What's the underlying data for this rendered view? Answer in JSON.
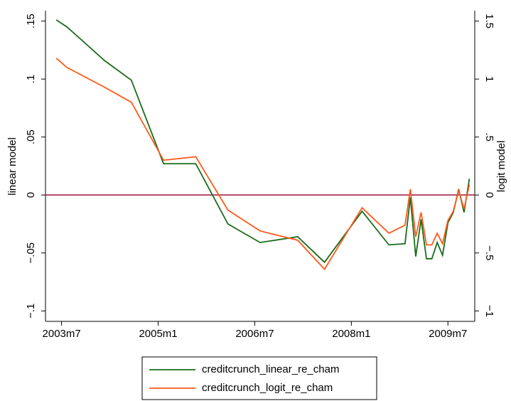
{
  "chart_data": {
    "type": "line",
    "y_label": "linear model",
    "y2_label": "logit model",
    "x": [
      "2003m6",
      "2003m8",
      "2004m3",
      "2004m8",
      "2005m2",
      "2005m8",
      "2006m2",
      "2006m8",
      "2007m3",
      "2007m8",
      "2008m3",
      "2008m8",
      "2008m11",
      "2008m12",
      "2009m1",
      "2009m2",
      "2009m3",
      "2009m4",
      "2009m5",
      "2009m6",
      "2009m7",
      "2009m8",
      "2009m9",
      "2009m10",
      "2009m11"
    ],
    "series": [
      {
        "name": "creditcrunch_linear_re_cham",
        "color": "#1a6b1a",
        "values": [
          0.151,
          0.145,
          0.116,
          0.099,
          0.027,
          0.027,
          -0.025,
          -0.041,
          -0.036,
          -0.058,
          -0.014,
          -0.043,
          -0.042,
          -0.002,
          -0.053,
          -0.021,
          -0.055,
          -0.055,
          -0.041,
          -0.052,
          -0.024,
          -0.015,
          0.005,
          -0.015,
          0.014
        ]
      },
      {
        "name": "creditcrunch_logit_re_cham",
        "color": "#ff5a1a",
        "axis": "y2",
        "values": [
          1.18,
          1.1,
          0.93,
          0.8,
          0.3,
          0.33,
          -0.13,
          -0.31,
          -0.39,
          -0.64,
          -0.11,
          -0.33,
          -0.26,
          0.05,
          -0.36,
          -0.15,
          -0.43,
          -0.43,
          -0.33,
          -0.42,
          -0.22,
          -0.14,
          0.04,
          -0.12,
          0.09
        ]
      }
    ],
    "xlim": [
      "2003m4",
      "2009m12"
    ],
    "xticks": [
      "2003m7",
      "2005m1",
      "2006m7",
      "2008m1",
      "2009m7"
    ],
    "ylim": [
      -0.109,
      0.159
    ],
    "yticks": [
      {
        "value": -0.1,
        "label": "−.1"
      },
      {
        "value": -0.05,
        "label": "−.05"
      },
      0,
      {
        "value": 0.05,
        "label": ".05"
      },
      {
        "value": 0.1,
        "label": ".1"
      },
      {
        "value": 0.15,
        "label": ".15"
      }
    ],
    "y2lim": [
      -1.09,
      1.59
    ],
    "y2ticks": [
      {
        "value": -1,
        "label": "−1"
      },
      {
        "value": -0.5,
        "label": "−.5"
      },
      0,
      {
        "value": 0.5,
        "label": ".5"
      },
      1,
      {
        "value": 1.5,
        "label": "1.5"
      }
    ],
    "reference_line": {
      "value": 0,
      "color": "#a0153e"
    },
    "legend": "bottom"
  }
}
